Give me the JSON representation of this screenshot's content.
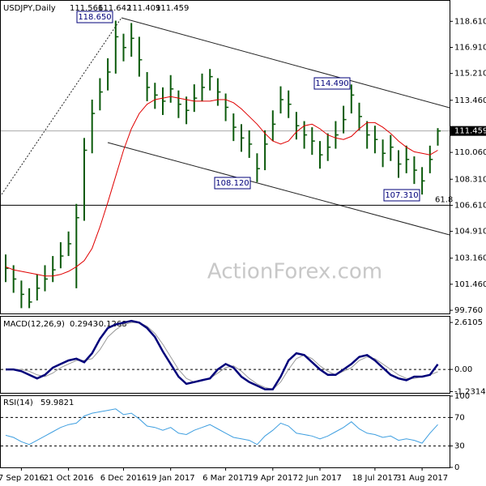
{
  "chart_data": {
    "type": "ohlc",
    "title": "USDJPY,Daily",
    "quote": [
      111.566,
      111.642,
      111.409,
      111.459
    ],
    "watermark": "ActionForex.com",
    "categories": [
      null,
      null,
      "7 Sep 2016",
      null,
      null,
      null,
      null,
      null,
      "21 Oct 2016",
      null,
      null,
      null,
      null,
      null,
      null,
      "6 Dec 2016",
      null,
      null,
      null,
      null,
      null,
      "19 Jan 2017",
      null,
      null,
      null,
      null,
      null,
      null,
      "6 Mar 2017",
      null,
      null,
      null,
      null,
      null,
      "19 Apr 2017",
      null,
      null,
      null,
      null,
      null,
      "2 Jun 2017",
      null,
      null,
      null,
      null,
      null,
      null,
      "18 Jul 2017",
      null,
      null,
      null,
      null,
      null,
      "31 Aug 2017",
      null,
      null
    ],
    "high": [
      103.4,
      102.7,
      101.7,
      101.2,
      102.1,
      102.7,
      103.3,
      104.2,
      104.9,
      106.7,
      111.0,
      113.5,
      114.9,
      116.2,
      118.65,
      117.8,
      118.5,
      117.6,
      115.3,
      114.6,
      114.3,
      115.1,
      114.1,
      113.7,
      114.5,
      115.2,
      115.5,
      114.9,
      113.9,
      112.6,
      111.9,
      111.5,
      110.0,
      111.5,
      112.8,
      114.37,
      114.1,
      112.7,
      112.1,
      111.7,
      110.8,
      111.3,
      112.1,
      113.1,
      114.49,
      113.3,
      112.1,
      111.8,
      110.9,
      111.2,
      110.2,
      110.5,
      109.8,
      109.1,
      110.5,
      111.642
    ],
    "low": [
      101.6,
      100.9,
      99.9,
      99.9,
      100.4,
      101.0,
      101.6,
      102.5,
      103.3,
      101.2,
      105.6,
      110.0,
      112.8,
      114.1,
      115.2,
      116.0,
      116.3,
      115.0,
      113.4,
      112.9,
      112.5,
      113.3,
      112.3,
      111.9,
      112.7,
      113.4,
      114.1,
      113.1,
      112.1,
      110.8,
      110.1,
      109.7,
      108.12,
      108.9,
      110.8,
      112.6,
      112.3,
      110.9,
      110.3,
      109.9,
      109.0,
      109.5,
      110.3,
      111.3,
      112.6,
      111.5,
      110.3,
      110.0,
      109.1,
      109.5,
      108.4,
      108.7,
      108.0,
      107.31,
      108.7,
      110.5
    ],
    "close": [
      102.5,
      101.8,
      100.8,
      100.3,
      101.2,
      101.8,
      102.4,
      103.3,
      104.1,
      105.8,
      110.2,
      112.6,
      114.0,
      115.3,
      117.6,
      116.9,
      117.5,
      116.1,
      114.3,
      113.8,
      113.4,
      114.2,
      113.2,
      112.8,
      113.6,
      114.3,
      115.0,
      114.0,
      113.0,
      111.7,
      111.0,
      110.6,
      109.0,
      110.6,
      111.9,
      113.5,
      113.2,
      111.8,
      111.2,
      110.8,
      109.9,
      110.4,
      111.2,
      112.2,
      113.8,
      112.4,
      111.2,
      110.9,
      110.0,
      110.4,
      109.3,
      109.6,
      108.9,
      108.2,
      109.6,
      111.459
    ],
    "color": "#0b5a0b",
    "ma": {
      "color": "#e00000",
      "values": [
        102.6,
        102.4,
        102.3,
        102.2,
        102.1,
        102.0,
        102.0,
        102.1,
        102.3,
        102.6,
        103.0,
        103.8,
        105.2,
        106.8,
        108.5,
        110.2,
        111.6,
        112.6,
        113.2,
        113.5,
        113.6,
        113.7,
        113.6,
        113.5,
        113.4,
        113.4,
        113.4,
        113.5,
        113.5,
        113.3,
        112.9,
        112.4,
        111.9,
        111.3,
        110.8,
        110.6,
        110.8,
        111.4,
        111.8,
        111.9,
        111.6,
        111.2,
        111.0,
        110.9,
        111.1,
        111.6,
        112.0,
        112.0,
        111.7,
        111.3,
        110.8,
        110.4,
        110.1,
        110.0,
        109.9,
        110.2
      ]
    },
    "last_price": 111.459,
    "price_labels": [
      {
        "value": 118.65,
        "label": "118.650"
      },
      {
        "value": 114.49,
        "label": "114.490"
      },
      {
        "value": 108.12,
        "label": "108.120"
      },
      {
        "value": 107.31,
        "label": "107.310"
      }
    ],
    "fib_level": 61.8,
    "ylim": [
      99.5,
      120.0
    ],
    "yticks": [
      {
        "value": 118.61,
        "label": "118.610"
      },
      {
        "value": 116.91,
        "label": "116.910"
      },
      {
        "value": 115.21,
        "label": "115.210"
      },
      {
        "value": 113.46,
        "label": "113.460"
      },
      {
        "value": 110.06,
        "label": "110.060"
      },
      {
        "value": 108.31,
        "label": "108.310"
      },
      {
        "value": 106.61,
        "label": "106.610"
      },
      {
        "value": 104.91,
        "label": "104.910"
      },
      {
        "value": 103.16,
        "label": "103.160"
      },
      {
        "value": 101.46,
        "label": "101.460"
      },
      {
        "value": 99.76,
        "label": "99.760"
      }
    ],
    "macd": {
      "type": "line",
      "title": "MACD(12,26,9)",
      "header_values": [
        0.2943,
        -0.1268
      ],
      "ylim": [
        -1.3,
        2.93
      ],
      "yticks": [
        2.6105,
        {
          "value": 0,
          "label": "0.00"
        },
        -1.2314
      ],
      "macd": {
        "color": "#00007a",
        "values": [
          0.0,
          0.0,
          -0.1,
          -0.3,
          -0.5,
          -0.3,
          0.1,
          0.3,
          0.5,
          0.6,
          0.4,
          0.9,
          1.7,
          2.3,
          2.5,
          2.6,
          2.7,
          2.6,
          2.3,
          1.8,
          1.0,
          0.3,
          -0.4,
          -0.8,
          -0.7,
          -0.6,
          -0.5,
          0.0,
          0.3,
          0.1,
          -0.4,
          -0.7,
          -0.9,
          -1.1,
          -1.1,
          -0.4,
          0.5,
          0.9,
          0.8,
          0.4,
          0.0,
          -0.3,
          -0.3,
          0.0,
          0.3,
          0.7,
          0.8,
          0.5,
          0.1,
          -0.3,
          -0.5,
          -0.6,
          -0.4,
          -0.4,
          -0.3,
          0.29
        ]
      },
      "signal": {
        "color": "#9a9a9a",
        "values": [
          0.0,
          0.0,
          0.0,
          -0.1,
          -0.3,
          -0.4,
          -0.2,
          0.1,
          0.3,
          0.5,
          0.5,
          0.6,
          1.1,
          1.8,
          2.2,
          2.5,
          2.6,
          2.6,
          2.4,
          2.0,
          1.4,
          0.7,
          0.0,
          -0.5,
          -0.7,
          -0.6,
          -0.5,
          -0.2,
          0.1,
          0.2,
          -0.1,
          -0.5,
          -0.8,
          -1.0,
          -1.1,
          -0.7,
          0.0,
          0.6,
          0.8,
          0.6,
          0.2,
          -0.1,
          -0.3,
          -0.1,
          0.1,
          0.5,
          0.7,
          0.6,
          0.3,
          0.0,
          -0.3,
          -0.5,
          -0.5,
          -0.4,
          -0.3,
          -0.13
        ]
      }
    },
    "rsi": {
      "type": "line",
      "title": "RSI(14)",
      "header_value": 59.9821,
      "ylim": [
        0,
        100
      ],
      "yticks": [
        100,
        70,
        30,
        0
      ],
      "color": "#3f9fe0",
      "values": [
        45,
        42,
        36,
        32,
        38,
        44,
        50,
        56,
        60,
        62,
        72,
        76,
        78,
        80,
        82,
        74,
        76,
        68,
        58,
        56,
        52,
        56,
        48,
        46,
        52,
        56,
        60,
        54,
        48,
        42,
        40,
        38,
        32,
        44,
        52,
        62,
        58,
        48,
        46,
        44,
        40,
        44,
        50,
        56,
        64,
        54,
        48,
        46,
        42,
        44,
        38,
        40,
        38,
        34,
        48,
        60
      ]
    }
  }
}
